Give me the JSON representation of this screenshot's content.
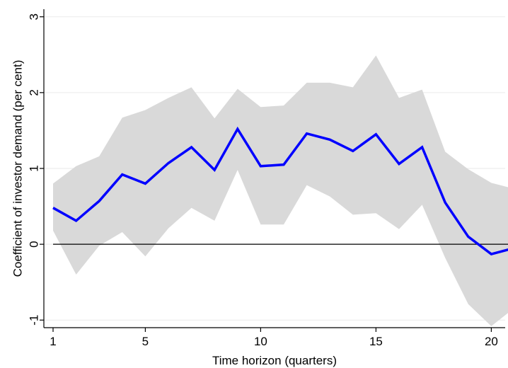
{
  "chart_data": {
    "type": "line",
    "title": "",
    "xlabel": "Time horizon (quarters)",
    "ylabel": "Coefficient of investor demand (per cent)",
    "xlim": [
      1,
      21
    ],
    "ylim": [
      -1.1,
      3.1
    ],
    "x_ticks": [
      1,
      5,
      10,
      15,
      20
    ],
    "x_tick_labels": [
      "1",
      "5",
      "10",
      "15",
      "20"
    ],
    "y_ticks": [
      -1,
      0,
      1,
      2,
      3
    ],
    "y_tick_labels": [
      "-1",
      "0",
      "1",
      "2",
      "3"
    ],
    "grid": "horizontal",
    "reference_line": 0,
    "x": [
      1,
      2,
      3,
      4,
      5,
      6,
      7,
      8,
      9,
      10,
      11,
      12,
      13,
      14,
      15,
      16,
      17,
      18,
      19,
      20,
      21
    ],
    "series": [
      {
        "values": [
          0.48,
          0.31,
          0.57,
          0.92,
          0.8,
          1.07,
          1.28,
          0.98,
          1.52,
          1.03,
          1.05,
          1.46,
          1.38,
          1.23,
          1.45,
          1.06,
          1.28,
          0.55,
          0.1,
          -0.13,
          -0.05
        ],
        "color": "#0000ff"
      }
    ],
    "band": {
      "lower": [
        0.18,
        -0.4,
        -0.02,
        0.16,
        -0.16,
        0.21,
        0.48,
        0.31,
        0.98,
        0.26,
        0.26,
        0.78,
        0.63,
        0.39,
        0.41,
        0.2,
        0.52,
        -0.18,
        -0.79,
        -1.08,
        -0.84
      ],
      "upper": [
        0.8,
        1.03,
        1.16,
        1.67,
        1.77,
        1.93,
        2.07,
        1.66,
        2.05,
        1.81,
        1.83,
        2.13,
        2.13,
        2.07,
        2.49,
        1.93,
        2.04,
        1.22,
        0.99,
        0.81,
        0.73
      ],
      "color": "#d9d9d9"
    }
  }
}
